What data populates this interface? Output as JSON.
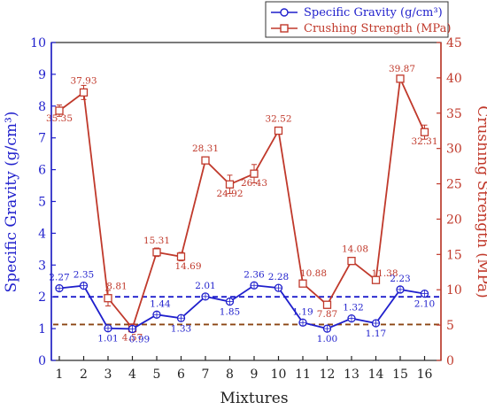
{
  "chart_data": {
    "type": "line",
    "title": "",
    "xlabel": "Mixtures",
    "ylabel_left": "Specific Gravity (g/cm³)",
    "ylabel_right": "Crushing Strength (MPa)",
    "ylim_left": [
      0,
      10
    ],
    "ylim_right": [
      0,
      45
    ],
    "yticks_left": [
      0,
      1,
      2,
      3,
      4,
      5,
      6,
      7,
      8,
      9,
      10
    ],
    "yticks_right": [
      0,
      5,
      10,
      15,
      20,
      25,
      30,
      35,
      40,
      45
    ],
    "categories": [
      "1",
      "2",
      "3",
      "4",
      "5",
      "6",
      "7",
      "8",
      "9",
      "10",
      "11",
      "12",
      "13",
      "14",
      "15",
      "16"
    ],
    "legend_placement": "top-right",
    "series": [
      {
        "name": "Specific Gravity (g/cm³)",
        "axis": "left",
        "color": "#1f1fcc",
        "marker": "circle",
        "values": [
          2.27,
          2.35,
          1.01,
          0.99,
          1.44,
          1.33,
          2.01,
          1.85,
          2.36,
          2.28,
          1.19,
          1.0,
          1.32,
          1.17,
          2.23,
          2.1
        ],
        "labels": [
          "2.27",
          "2.35",
          "1.01",
          "0.99",
          "1.44",
          "1.33",
          "2.01",
          "1.85",
          "2.36",
          "2.28",
          "1.19",
          "1.00",
          "1.32",
          "1.17",
          "2.23",
          "2.10"
        ]
      },
      {
        "name": "Crushing Strength (MPa)",
        "axis": "right",
        "color": "#c0392b",
        "marker": "square",
        "values": [
          35.35,
          37.93,
          8.81,
          4.57,
          15.31,
          14.69,
          28.31,
          24.92,
          26.43,
          32.52,
          10.88,
          7.87,
          14.08,
          11.38,
          39.87,
          32.31
        ],
        "errors": [
          0.8,
          1.0,
          1.1,
          0.6,
          0.6,
          0.6,
          0.4,
          1.3,
          1.3,
          0.4,
          0.4,
          0.5,
          0.5,
          0.4,
          0.5,
          1.0
        ],
        "labels": [
          "35.35",
          "37.93",
          "8.81",
          "4.57",
          "15.31",
          "14.69",
          "28.31",
          "24.92",
          "26.43",
          "32.52",
          "10.88",
          "7.87",
          "14.08",
          "11.38",
          "39.87",
          "32.31"
        ]
      }
    ],
    "reference_lines": [
      {
        "axis": "left",
        "value": 2.0,
        "color": "#1f1fcc",
        "style": "dashed"
      },
      {
        "axis": "left",
        "value": 1.13,
        "color": "#8b4513",
        "style": "dashed"
      }
    ]
  }
}
